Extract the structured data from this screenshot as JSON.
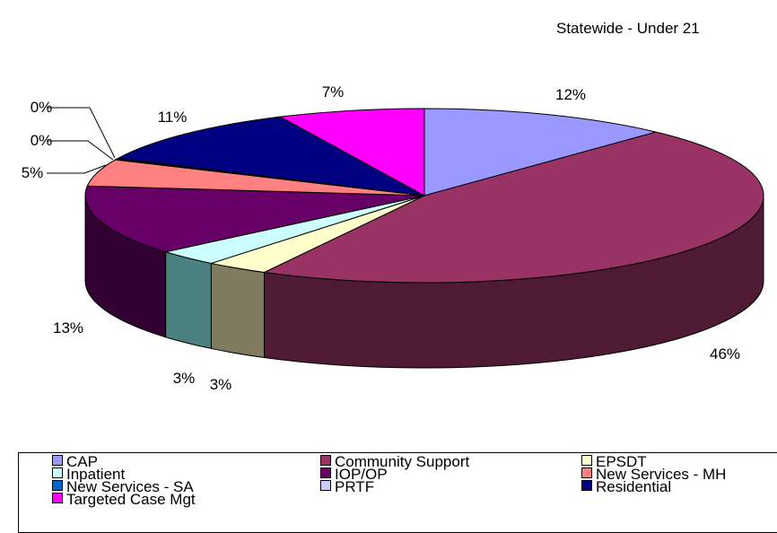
{
  "chart_data": {
    "type": "pie",
    "title": "Statewide - Under 21",
    "slices": [
      {
        "name": "CAP",
        "label": "12%",
        "value": 12,
        "color": "#9999FF",
        "side": "#5C5C99"
      },
      {
        "name": "Community Support",
        "label": "46%",
        "value": 46,
        "color": "#993366",
        "side": "#4E1A34"
      },
      {
        "name": "EPSDT",
        "label": "3%",
        "value": 3,
        "color": "#FFFFCC",
        "side": "#807B5E"
      },
      {
        "name": "Inpatient",
        "label": "3%",
        "value": 3,
        "color": "#CCFFFF",
        "side": "#4A8080"
      },
      {
        "name": "IOP/OP",
        "label": "13%",
        "value": 13,
        "color": "#660066",
        "side": "#330033"
      },
      {
        "name": "New Services - MH",
        "label": "5%",
        "value": 5,
        "color": "#FF8080",
        "side": "#804040"
      },
      {
        "name": "New Services - SA",
        "label": "0%",
        "value": 0.15,
        "color": "#0066CC",
        "side": "#003366"
      },
      {
        "name": "PRTF",
        "label": "0%",
        "value": 0.15,
        "color": "#CCCCFF",
        "side": "#666680"
      },
      {
        "name": "Residential",
        "label": "11%",
        "value": 11,
        "color": "#000080",
        "side": "#000040"
      },
      {
        "name": "Targeted Case Mgt",
        "label": "7%",
        "value": 7,
        "color": "#FF00FF",
        "side": "#800080"
      }
    ],
    "legend_position": "bottom"
  },
  "legend": {
    "items": [
      {
        "label": "CAP",
        "color": "#9999FF"
      },
      {
        "label": "Community Support",
        "color": "#993366"
      },
      {
        "label": "EPSDT",
        "color": "#FFFFCC"
      },
      {
        "label": "Inpatient",
        "color": "#CCFFFF"
      },
      {
        "label": "IOP/OP",
        "color": "#660066"
      },
      {
        "label": "New Services - MH",
        "color": "#FF8080"
      },
      {
        "label": "New Services - SA",
        "color": "#0066CC"
      },
      {
        "label": "PRTF",
        "color": "#CCCCFF"
      },
      {
        "label": "Residential",
        "color": "#000080"
      },
      {
        "label": "Targeted Case Mgt",
        "color": "#FF00FF"
      }
    ]
  }
}
